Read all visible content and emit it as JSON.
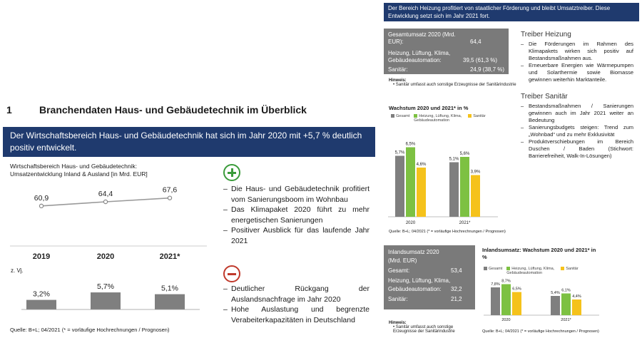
{
  "section": {
    "number": "1",
    "title": "Branchendaten Haus- und Gebäudetechnik im Überblick"
  },
  "headline_left": "Der Wirtschaftsbereich Haus- und Gebäudetechnik hat sich im Jahr 2020 mit +5,7 % deutlich positiv entwickelt.",
  "headline_right": "Der Bereich Heizung profitiert von staatlicher Förderung und bleibt Umsatztreiber. Diese Entwicklung setzt sich im Jahr 2021 fort.",
  "left_chart": {
    "title": "Wirtschaftsbereich Haus- und Gebäudetechnik: Umsatzentwicklung Inland & Ausland [in Mrd. EUR]",
    "change_label": "z. Vj.",
    "source": "Quelle: B+L; 04/2021 (* = vorläufige Hochrechnungen / Prognosen)"
  },
  "pros": {
    "icon": "plus-circle-icon",
    "color": "#3a9b3a",
    "items": [
      "Die Haus- und Gebäudetechnik profitiert vom Sanierungsboom im Wohnbau",
      "Das Klimapaket 2020 führt zu mehr energetischen Sanierungen",
      "Positiver Ausblick für das laufende Jahr 2021"
    ]
  },
  "cons": {
    "icon": "minus-circle-icon",
    "color": "#c0392b",
    "items": [
      "Deutlicher Rückgang der Auslandsnachfrage im Jahr 2020",
      "Hohe Auslastung und begrenzte Verabeiterkapazitäten in Deutschland"
    ]
  },
  "total_box": {
    "rows": [
      {
        "label": "Gesamtumsatz 2020 (Mrd. EUR):",
        "value": "64,4"
      },
      {
        "label": "Heizung, Lüftung, Klima, Gebäudeautomation:",
        "value": "39,5 (61,3 %)"
      },
      {
        "label": "Sanitär:",
        "value": "24,9 (38,7 %)"
      }
    ],
    "note_title": "Hinweis:",
    "note": "Sanitär umfasst auch sonstige Erzeugnisse der Sanitärindustrie"
  },
  "domestic_box": {
    "title": "Inlandsumsatz 2020 (Mrd. EUR)",
    "rows": [
      {
        "label": "Gesamt:",
        "value": "53,4"
      },
      {
        "label": "Heizung, Lüftung, Klima, Gebäudeautomation:",
        "value": "32,2"
      },
      {
        "label": "Sanitär:",
        "value": "21,2"
      }
    ],
    "note_title": "Hinweis:",
    "note": "Sanitär umfasst auch sonstige Erzeugnisse der Sanitärindustrie"
  },
  "heizung": {
    "title": "Treiber Heizung",
    "items": [
      "Die Förderungen im Rahmen des Klimapakets wirken sich positiv auf Bestandsmaßnahmen aus.",
      "Erneuerbare Energien wie Wärmepumpen und Solarthermie sowie Biomasse gewinnen weiterhin Marktanteile."
    ]
  },
  "sanitaer": {
    "title": "Treiber Sanitär",
    "items": [
      "Bestandsmaßnahmen / Sanierungen gewinnen auch im Jahr 2021 weiter an Bedeutung",
      "Sanierungsbudgets steigen: Trend zum „Wohnbad“ und zu mehr Exklusivität",
      "Produktverschiebungen im Bereich Duschen / Baden (Stichwort: Barrierefreiheit, Walk-In-Lösungen)"
    ]
  },
  "growth_chart_source": "Quelle: B+L; 04/2021 (* = vorläufige Hochrechnungen / Prognosen)",
  "domestic_chart_source": "Quelle: B+L; 04/2021 (* = vorläufige Hochrechnungen / Prognosen)",
  "colors": {
    "gesamt": "#7f7f7f",
    "hlk": "#7dc142",
    "sanitaer": "#f5c21b",
    "navy": "#1f3a6e"
  },
  "chart_data": [
    {
      "type": "line",
      "categories": [
        "2019",
        "2020",
        "2021*"
      ],
      "values": [
        60.9,
        64.4,
        67.6
      ],
      "value_labels": [
        "60,9",
        "64,4",
        "67,6"
      ],
      "change_values": [
        3.2,
        5.7,
        5.1
      ],
      "change_labels": [
        "3,2%",
        "5,7%",
        "5,1%"
      ]
    },
    {
      "type": "bar",
      "title": "Wachstum 2020 und 2021* in %",
      "categories": [
        "2020",
        "2021*"
      ],
      "series": [
        {
          "name": "Gesamt",
          "values": [
            5.7,
            5.1
          ],
          "labels": [
            "5,7%",
            "5,1%"
          ]
        },
        {
          "name": "Heizung, Lüftung, Klima, Gebäudeautomation",
          "values": [
            6.5,
            5.6
          ],
          "labels": [
            "6,5%",
            "5,6%"
          ]
        },
        {
          "name": "Sanitär",
          "values": [
            4.6,
            3.9
          ],
          "labels": [
            "4,6%",
            "3,9%"
          ]
        }
      ]
    },
    {
      "type": "bar",
      "title": "Inlandsumsatz: Wachstum 2020 und 2021* in %",
      "categories": [
        "2020",
        "2021*"
      ],
      "series": [
        {
          "name": "Gesamt",
          "values": [
            7.8,
            5.4
          ],
          "labels": [
            "7,8%",
            "5,4%"
          ]
        },
        {
          "name": "Heizung, Lüftung, Klima, Gebäudeautomation",
          "values": [
            8.7,
            6.1
          ],
          "labels": [
            "8,7%",
            "6,1%"
          ]
        },
        {
          "name": "Sanitär",
          "values": [
            6.5,
            4.4
          ],
          "labels": [
            "6,5%",
            "4,4%"
          ]
        }
      ]
    }
  ]
}
